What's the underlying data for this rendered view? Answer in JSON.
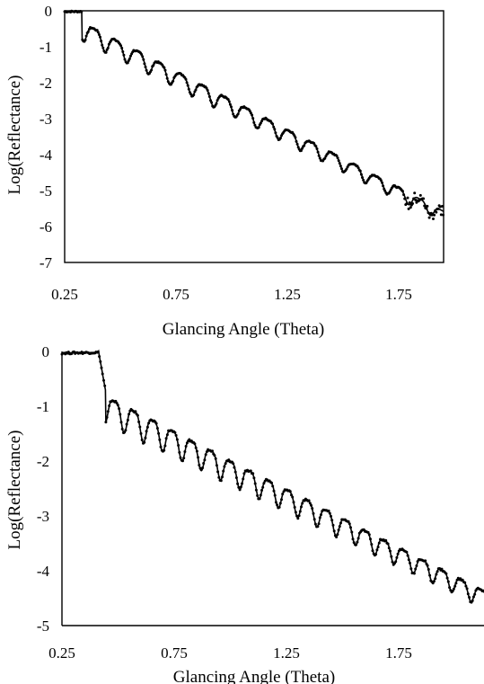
{
  "chart_data": [
    {
      "type": "scatter",
      "xlabel": "Glancing Angle (Theta)",
      "ylabel": "Log(Reflectance)",
      "xlim": [
        0.25,
        1.98
      ],
      "ylim": [
        -7,
        0
      ],
      "x_ticks": [
        "0.25",
        "0.75",
        "1.25",
        "1.75"
      ],
      "y_ticks": [
        "0",
        "-1",
        "-2",
        "-3",
        "-4",
        "-5",
        "-6",
        "-7"
      ],
      "series": [
        {
          "style": "dots-and-line",
          "critical_angle": 0.33,
          "fringe_period": 0.099,
          "first_fringe_max": 0.385,
          "envelope_start": 0.33,
          "envelope_y_start": -0.45,
          "envelope_end": 1.98,
          "envelope_y_end": -5.7,
          "min_depth_start": 0.5,
          "min_depth_end": 0.3,
          "noise_from_x": 1.8
        }
      ],
      "grid": false,
      "legend": "none"
    },
    {
      "type": "scatter",
      "xlabel": "Glancing Angle (Theta)",
      "ylabel": "Log(Reflectance)",
      "xlim": [
        0.25,
        1.98
      ],
      "ylim": [
        -5,
        0
      ],
      "x_ticks": [
        "0.25",
        "0.75",
        "1.25",
        "1.75"
      ],
      "y_ticks": [
        "0",
        "-1",
        "-2",
        "-3",
        "-4",
        "-5"
      ],
      "series": [
        {
          "style": "dots-and-line",
          "critical_angle": 0.4,
          "fringe_period": 0.079,
          "first_fringe_max": 0.465,
          "envelope_start": 0.43,
          "envelope_y_start": -0.95,
          "envelope_end": 1.98,
          "envelope_y_end": -4.5,
          "min_depth_start": 0.5,
          "min_depth_end": 0.3,
          "noise_from_x": 2.5
        }
      ],
      "grid": false,
      "legend": "none"
    }
  ]
}
